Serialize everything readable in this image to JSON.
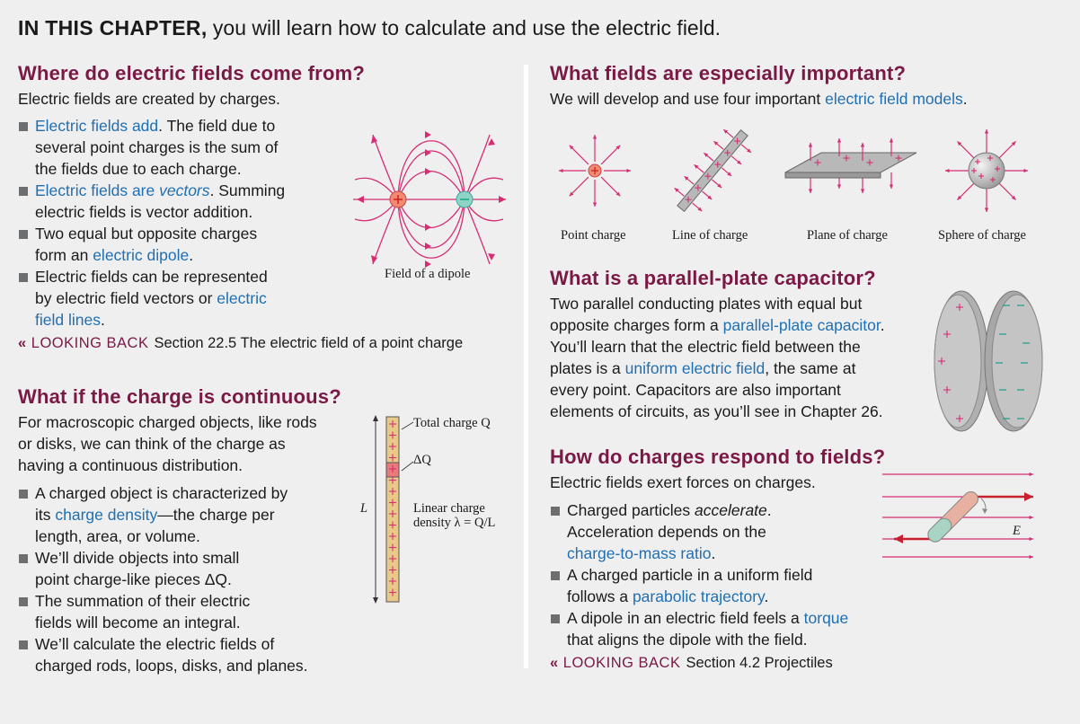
{
  "intro": {
    "bold": "IN THIS CHAPTER,",
    "rest": "you will learn how to calculate and use the electric field."
  },
  "left": {
    "s1": {
      "heading": "Where do electric fields come from?",
      "intro": "Electric fields are created by charges.",
      "b1": {
        "link": "Electric fields add",
        "l1rest": ". The field due to",
        "l2": "several point charges is the sum of",
        "l3": "the fields due to each charge."
      },
      "b2": {
        "link_a": "Electric fields are ",
        "link_b": "vectors",
        "l1rest": ". Summing",
        "l2": "electric fields is vector addition."
      },
      "b3": {
        "l1": "Two equal but opposite charges",
        "l2a": "form an ",
        "link": "electric dipole",
        "l2b": "."
      },
      "b4": {
        "l1": "Electric fields can be represented",
        "l2a": "by electric field vectors or ",
        "link1": "electric",
        "link2": "field lines",
        "l3b": "."
      },
      "caption": "Field of a dipole",
      "lookback": {
        "label": "LOOKING BACK",
        "text": "Section 22.5 The electric field of a point charge"
      }
    },
    "s2": {
      "heading": "What if the charge is continuous?",
      "p1": "For macroscopic charged objects, like rods",
      "p2": "or disks, we can think of the charge as",
      "p3": "having a continuous distribution.",
      "b1": {
        "l1": "A charged object is characterized by",
        "l2a": "its ",
        "link": "charge density",
        "l2b": "—the charge per",
        "l3": "length, area, or volume."
      },
      "b2": {
        "l1": "We’ll divide objects into small",
        "l2": "point charge-like pieces ΔQ."
      },
      "b3": {
        "l1": "The summation of their electric",
        "l2": "fields will become an integral."
      },
      "b4": {
        "l1": "We’ll calculate the electric fields of",
        "l2": "charged rods, loops, disks, and planes."
      },
      "rod": {
        "total": "Total charge Q",
        "dq": "ΔQ",
        "L": "L",
        "lin1": "Linear charge",
        "lin2": "density λ = Q/L"
      }
    }
  },
  "right": {
    "s1": {
      "heading": "What fields are especially important?",
      "p_a": "We will develop and use four important ",
      "link": "electric field models",
      "p_b": ".",
      "captions": [
        "Point charge",
        "Line of charge",
        "Plane of charge",
        "Sphere of charge"
      ]
    },
    "s2": {
      "heading": "What is a parallel-plate capacitor?",
      "l1": "Two parallel conducting plates with equal but",
      "l2a": "opposite charges form a ",
      "l2link": "parallel-plate capacitor",
      "l2b": ".",
      "l3": "You’ll learn that the electric field between the",
      "l4a": "plates is a ",
      "l4link": "uniform electric field",
      "l4b": ", the same at",
      "l5": "every point. Capacitors are also important",
      "l6": "elements of circuits, as you’ll see in Chapter 26."
    },
    "s3": {
      "heading": "How do charges respond to fields?",
      "intro": "Electric fields exert forces on charges.",
      "b1": {
        "l1a": "Charged particles ",
        "l1i": "accelerate",
        "l1b": ".",
        "l2": "Acceleration depends on the",
        "link": "charge-to-mass ratio",
        "l3b": "."
      },
      "b2": {
        "l1": "A charged particle in a uniform field",
        "l2a": "follows a ",
        "link": "parabolic trajectory",
        "l2b": "."
      },
      "b3": {
        "l1a": "A dipole in an electric field feels a ",
        "link": "torque",
        "l2": "that aligns the dipole with the field."
      },
      "field_label": "E",
      "lookback": {
        "label": "LOOKING BACK",
        "text": "Section 4.2 Projectiles"
      }
    }
  }
}
